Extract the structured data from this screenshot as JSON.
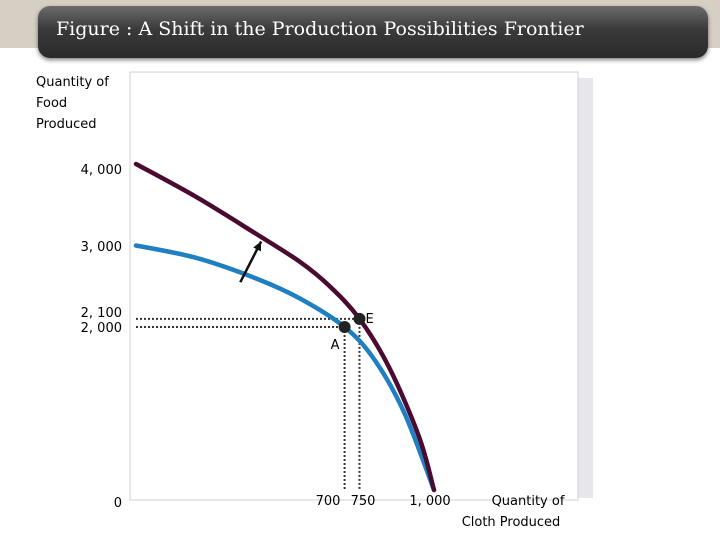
{
  "slide": {
    "title": "Figure : A Shift in the Production Possibilities Frontier"
  },
  "colors": {
    "original_frontier": "#1f7fc0",
    "new_frontier": "#4b0a30",
    "points": "#222222"
  },
  "chart_data": {
    "type": "line",
    "title": "",
    "ylabel_lines": [
      "Quantity of",
      "Food",
      "Produced"
    ],
    "xlabel_lines": [
      "Quantity of",
      "Cloth Produced"
    ],
    "xlim": [
      0,
      1300
    ],
    "ylim": [
      0,
      4000
    ],
    "y_ticks": [
      {
        "value": 4000,
        "label": "4, 000"
      },
      {
        "value": 3000,
        "label": "3, 000"
      },
      {
        "value": 2100,
        "label": "2, 100"
      },
      {
        "value": 2000,
        "label": "2, 000"
      },
      {
        "value": 0,
        "label": "0"
      }
    ],
    "x_ticks": [
      {
        "value": 700,
        "label": "700"
      },
      {
        "value": 750,
        "label": "750"
      },
      {
        "value": 1000,
        "label": "1, 000"
      }
    ],
    "series": [
      {
        "key": "original",
        "x": [
          0,
          200,
          400,
          550,
          700,
          800,
          900,
          1000
        ],
        "y": [
          3000,
          2850,
          2600,
          2350,
          2000,
          1600,
          950,
          0
        ]
      },
      {
        "key": "shifted",
        "x": [
          0,
          200,
          400,
          550,
          650,
          750,
          850,
          950,
          1000
        ],
        "y": [
          4000,
          3600,
          3150,
          2800,
          2500,
          2100,
          1500,
          650,
          0
        ]
      }
    ],
    "points": [
      {
        "label": "A",
        "x": 700,
        "y": 2000
      },
      {
        "label": "E",
        "x": 750,
        "y": 2100
      }
    ],
    "arrow": {
      "from": [
        350,
        2550
      ],
      "to": [
        420,
        3050
      ]
    }
  }
}
